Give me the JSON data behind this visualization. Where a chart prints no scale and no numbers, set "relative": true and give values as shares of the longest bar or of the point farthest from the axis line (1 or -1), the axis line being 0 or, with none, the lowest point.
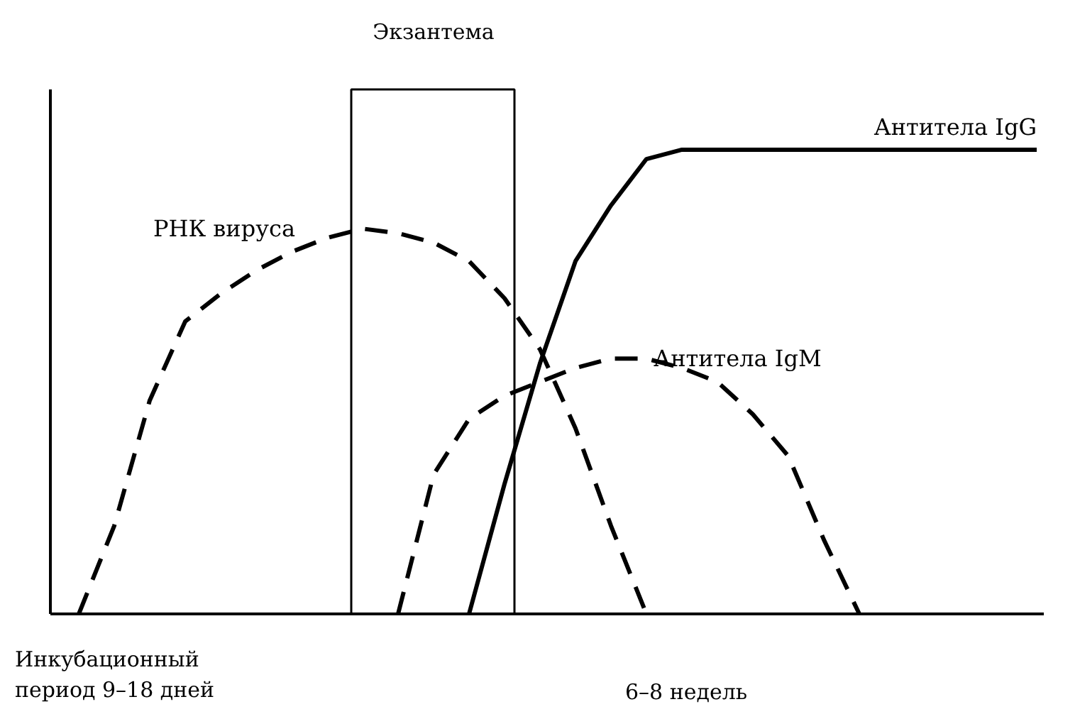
{
  "chart_data": {
    "type": "line",
    "relative": true,
    "categories": [
      null,
      null,
      null,
      null,
      null,
      null,
      null,
      null,
      null,
      null,
      null,
      null,
      null,
      null,
      null,
      null,
      null,
      null,
      null,
      null,
      null,
      null,
      null,
      null,
      null,
      null,
      null,
      null
    ],
    "series": [
      {
        "name": "РНК вируса",
        "color": "#000000",
        "line_style": "dashed",
        "values": [
          0,
          0.19,
          0.46,
          0.63,
          0.69,
          0.74,
          0.78,
          0.81,
          0.83,
          0.82,
          0.8,
          0.76,
          0.68,
          0.57,
          0.4,
          0.19,
          0,
          null,
          null,
          null,
          null,
          null,
          null,
          null,
          null,
          null,
          null,
          null
        ]
      },
      {
        "name": "Антитела IgG",
        "color": "#000000",
        "line_style": "solid",
        "values": [
          null,
          null,
          null,
          null,
          null,
          null,
          null,
          null,
          null,
          null,
          null,
          0,
          0.28,
          0.54,
          0.76,
          0.88,
          0.98,
          1,
          1,
          1,
          1,
          1,
          1,
          1,
          1,
          1,
          1,
          1
        ]
      },
      {
        "name": "Антитела IgM",
        "color": "#000000",
        "line_style": "dashed",
        "values": [
          null,
          null,
          null,
          null,
          null,
          null,
          null,
          null,
          null,
          0,
          0.3,
          0.42,
          0.47,
          0.5,
          0.53,
          0.55,
          0.55,
          0.53,
          0.5,
          0.43,
          0.34,
          0.16,
          0,
          null,
          null,
          null,
          null,
          null
        ]
      }
    ],
    "annotations": [
      "Экзантема",
      "Инкубационный\nпериод 9–18 дней",
      "6–8 недель"
    ],
    "grid": false
  }
}
